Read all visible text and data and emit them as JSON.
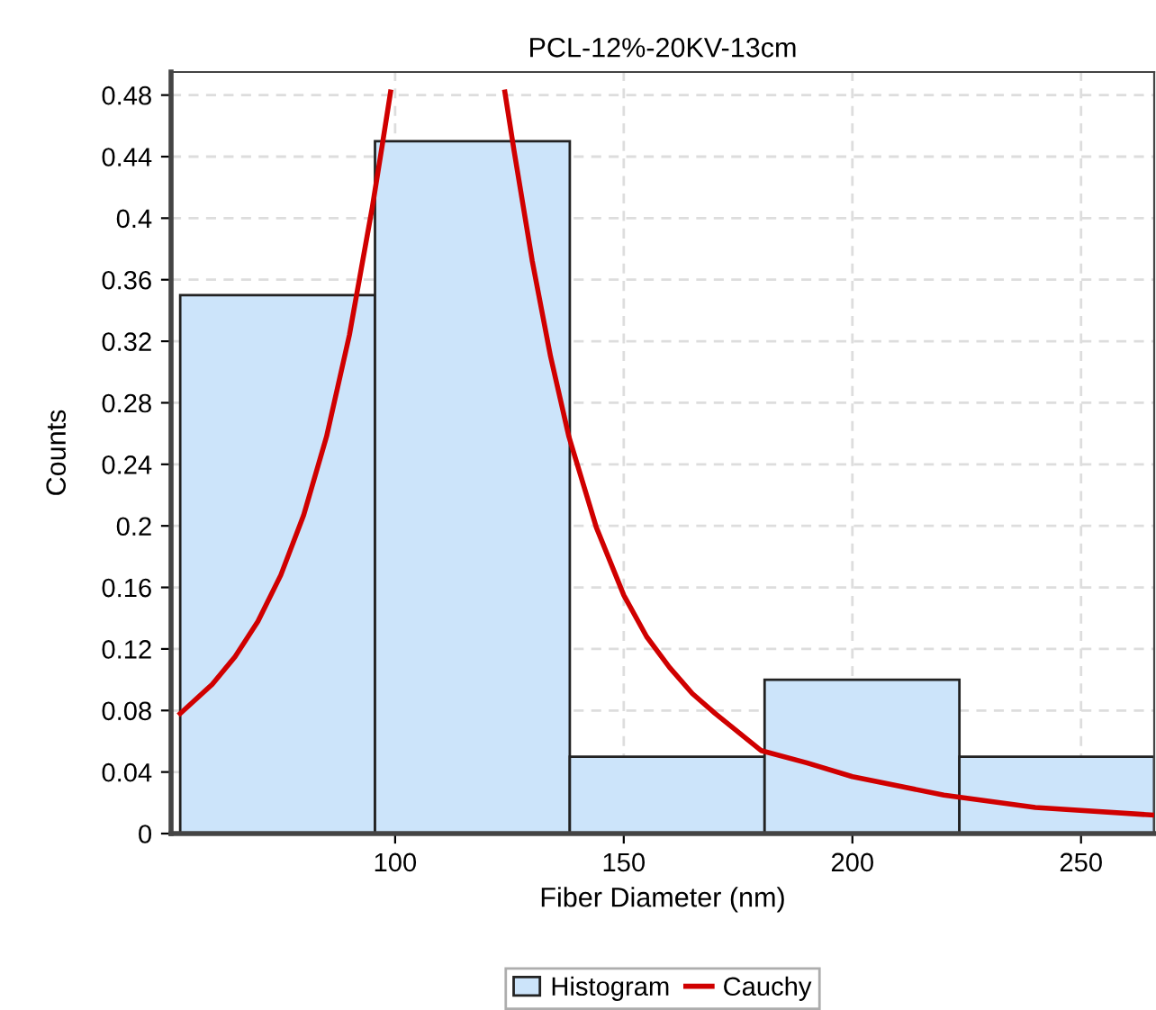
{
  "chart_data": {
    "type": "histogram",
    "title": "PCL-12%-20KV-13cm",
    "xlabel": "Fiber Diameter (nm)",
    "ylabel": "Counts",
    "xlim": [
      51,
      266
    ],
    "xticks": [
      100,
      150,
      200,
      250
    ],
    "ylim": [
      0,
      0.495
    ],
    "yticks": [
      0,
      0.04,
      0.08,
      0.12,
      0.16,
      0.2,
      0.24,
      0.28,
      0.32,
      0.36,
      0.4,
      0.44,
      0.48
    ],
    "grid": true,
    "legend": "bottom",
    "series": [
      {
        "name": "Histogram",
        "color": "#cce4fa",
        "bins": [
          53,
          95.6,
          138.2,
          180.8,
          223.4,
          266
        ],
        "values": [
          0.35,
          0.45,
          0.05,
          0.1,
          0.05
        ]
      },
      {
        "name": "Cauchy",
        "type": "line",
        "color": "#d00000",
        "x": [
          53,
          60,
          65,
          70,
          75,
          80,
          85,
          90,
          95,
          97,
          99,
          111,
          124,
          126,
          130,
          134,
          138,
          144,
          150,
          155,
          160,
          165,
          170,
          180,
          190,
          200,
          220,
          240,
          266
        ],
        "values": [
          0.078,
          0.097,
          0.115,
          0.138,
          0.168,
          0.207,
          0.258,
          0.324,
          0.407,
          0.444,
          0.482,
          null,
          0.482,
          0.444,
          0.372,
          0.31,
          0.258,
          0.199,
          0.155,
          0.128,
          0.108,
          0.091,
          0.078,
          0.054,
          0.046,
          0.037,
          0.025,
          0.017,
          0.012
        ]
      }
    ]
  }
}
